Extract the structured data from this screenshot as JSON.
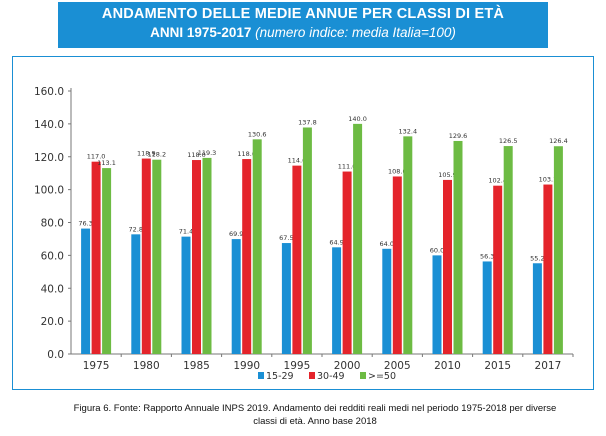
{
  "header": {
    "title": "ANDAMENTO DELLE MEDIE ANNUE PER CLASSI DI ETÀ",
    "years": "ANNI 1975-2017",
    "subtitle": "(numero indice: media Italia=100)"
  },
  "caption": {
    "line1": "Figura 6. Fonte: Rapporto Annuale INPS 2019. Andamento dei redditi reali medi nel periodo 1975-2018 per diverse",
    "line2": "classi di età. Anno base 2018"
  },
  "chart_data": {
    "type": "bar",
    "title": "ANDAMENTO DELLE MEDIE ANNUE PER CLASSI DI ETÀ ANNI 1975-2017",
    "subtitle": "(numero indice: media Italia=100)",
    "categories": [
      "1975",
      "1980",
      "1985",
      "1990",
      "1995",
      "2000",
      "2005",
      "2010",
      "2015",
      "2017"
    ],
    "series": [
      {
        "name": "15-29",
        "color": "#1a8fd4",
        "values": [
          76.3,
          72.8,
          71.4,
          69.9,
          67.5,
          64.9,
          64.0,
          60.0,
          56.3,
          55.2
        ],
        "labels": [
          "76.3",
          "72.8",
          "71.4",
          "69.9",
          "67.5",
          "64.9",
          "64.0",
          "60.0",
          "56.3",
          "55.2"
        ]
      },
      {
        "name": "30-49",
        "color": "#e4242b",
        "values": [
          117.0,
          118.9,
          118.0,
          118.6,
          114.6,
          111.0,
          108.0,
          105.9,
          102.4,
          103.1
        ],
        "labels": [
          "117.0",
          "118.9",
          "118.0",
          "118.6",
          "114.6",
          "111.0",
          "108.0",
          "105.9",
          "102.4",
          "103.1"
        ]
      },
      {
        "name": ">=50",
        "color": "#6dbb43",
        "values": [
          113.1,
          118.2,
          119.3,
          130.6,
          137.8,
          140.0,
          132.4,
          129.6,
          126.5,
          126.4
        ],
        "labels": [
          "113.1",
          "118.2",
          "119.3",
          "130.6",
          "137.8",
          "140.0",
          "132.4",
          "129.6",
          "126.5",
          "126.4"
        ]
      }
    ],
    "yticks": [
      "0.0",
      "20.0",
      "40.0",
      "60.0",
      "80.0",
      "100.0",
      "120.0",
      "140.0",
      "160.0"
    ],
    "ylim": [
      0,
      160
    ],
    "grid": false,
    "legend_position": "bottom"
  }
}
